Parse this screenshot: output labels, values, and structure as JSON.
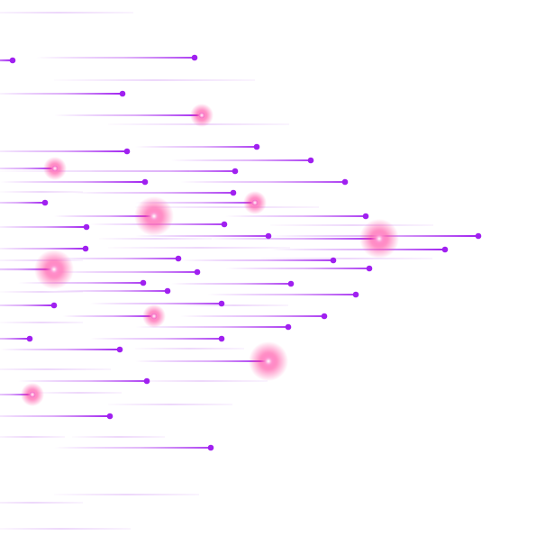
{
  "artwork": {
    "style": "speed-lines",
    "background_color": "#ffffff",
    "line_color": "#a020f0",
    "faint_line_color": "#d7a8f5",
    "glow_color": "#ff3c9a",
    "glow_core_color": "#ffffff",
    "direction": "left-to-right"
  }
}
